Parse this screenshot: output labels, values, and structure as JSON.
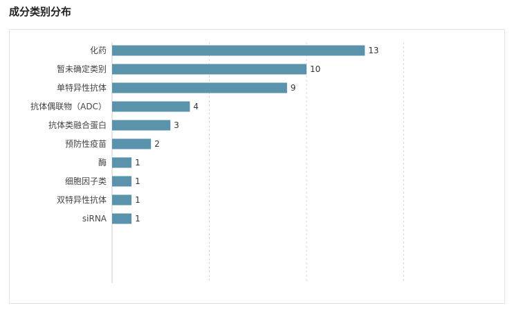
{
  "page": {
    "title": "成分类别分布"
  },
  "colors": {
    "bar": "#5b93ad",
    "grid": "#d9d9d9",
    "axis": "#cccccc"
  },
  "chart_data": {
    "type": "bar",
    "orientation": "horizontal",
    "title": "",
    "xlabel": "",
    "ylabel": "",
    "xlim": [
      0,
      20
    ],
    "grid": true,
    "grid_style": "dashed vertical",
    "show_data_labels": true,
    "categories": [
      "化药",
      "暂未确定类别",
      "单特异性抗体",
      "抗体偶联物（ADC）",
      "抗体类融合蛋白",
      "预防性疫苗",
      "酶",
      "细胞因子类",
      "双特异性抗体",
      "siRNA"
    ],
    "values": [
      13,
      10,
      9,
      4,
      3,
      2,
      1,
      1,
      1,
      1
    ]
  }
}
